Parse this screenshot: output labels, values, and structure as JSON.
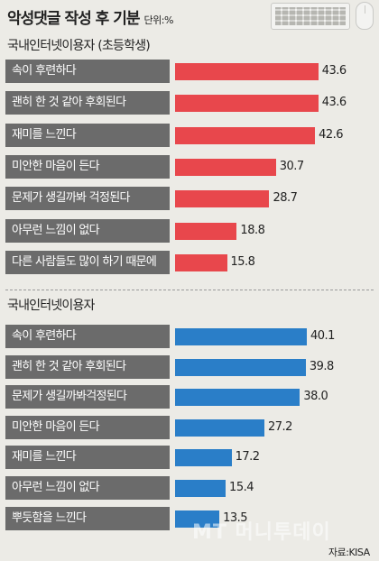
{
  "header": {
    "title": "악성댓글 작성 후 기분",
    "unit": "단위:%"
  },
  "source": "자료:KISA",
  "watermark": "MT 머니투데이",
  "colors": {
    "red": "#e8474c",
    "blue": "#2a7ec8",
    "label_bg": "#6b6b6b"
  },
  "chart_data": [
    {
      "type": "bar",
      "orientation": "horizontal",
      "title": "국내인터넷이용자 (초등학생)",
      "categories": [
        "속이 후련하다",
        "괜히 한 것 같아 후회된다",
        "재미를 느낀다",
        "미안한 마음이 든다",
        "문제가 생길까봐 걱정된다",
        "아무런 느낌이 없다",
        "다른 사람들도 많이 하기 때문에"
      ],
      "values": [
        43.6,
        43.6,
        42.6,
        30.7,
        28.7,
        18.8,
        15.8
      ],
      "value_labels": [
        "43.6",
        "43.6",
        "42.6",
        "30.7",
        "28.7",
        "18.8",
        "15.8"
      ],
      "color": "#e8474c",
      "xlim": [
        0,
        50
      ]
    },
    {
      "type": "bar",
      "orientation": "horizontal",
      "title": "국내인터넷이용자",
      "categories": [
        "속이 후련하다",
        "괜히 한 것 같아 후회된다",
        "문제가 생길까봐걱정된다",
        "미안한 마음이 든다",
        "재미를 느낀다",
        "아무런 느낌이 없다",
        "뿌듯함을 느낀다"
      ],
      "values": [
        40.1,
        39.8,
        38.0,
        27.2,
        17.2,
        15.4,
        13.5
      ],
      "value_labels": [
        "40.1",
        "39.8",
        "38.0",
        "27.2",
        "17.2",
        "15.4",
        "13.5"
      ],
      "color": "#2a7ec8",
      "xlim": [
        0,
        50
      ]
    }
  ]
}
